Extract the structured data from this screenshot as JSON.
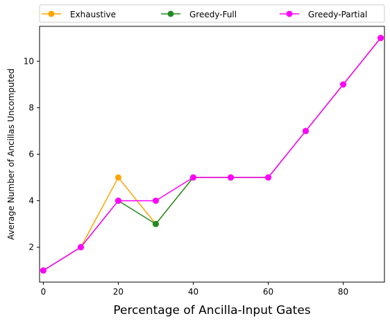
{
  "chart_data": {
    "type": "line",
    "title": "",
    "xlabel": "Percentage of Ancilla-Input Gates",
    "ylabel": "Average Number of Ancillas Uncomputed",
    "xlim": [
      -1,
      91
    ],
    "ylim": [
      0.5,
      11.5
    ],
    "xticks": [
      0,
      20,
      40,
      60,
      80
    ],
    "yticks": [
      2,
      4,
      6,
      8,
      10
    ],
    "grid": false,
    "legend_position": "top",
    "x": [
      0,
      10,
      20,
      30,
      40,
      50,
      60,
      70,
      80,
      90
    ],
    "series": [
      {
        "name": "Exhaustive",
        "color": "#ffa500",
        "values": [
          1,
          2,
          5,
          3,
          5,
          5,
          5,
          7,
          9,
          11
        ]
      },
      {
        "name": "Greedy-Full",
        "color": "#228b22",
        "values": [
          1,
          2,
          4,
          3,
          5,
          5,
          5,
          7,
          9,
          11
        ]
      },
      {
        "name": "Greedy-Partial",
        "color": "#ff00ff",
        "values": [
          1,
          2,
          4,
          4,
          5,
          5,
          5,
          7,
          9,
          11
        ]
      }
    ]
  }
}
